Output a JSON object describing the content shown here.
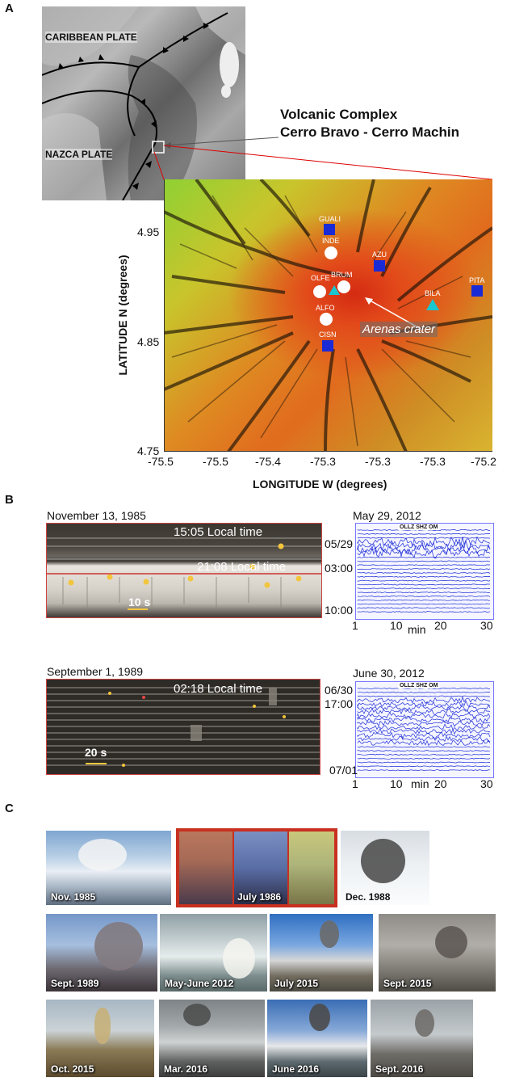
{
  "panel_a": {
    "letter": "A",
    "plate_caribbean": "CARIBBEAN PLATE",
    "plate_nazca": "NAZCA PLATE",
    "complex_title_1": "Volcanic Complex",
    "complex_title_2": "Cerro Bravo - Cerro Machin",
    "ylabel": "LATITUDE N (degrees)",
    "xlabel": "LONGITUDE W (degrees)",
    "yticks": [
      "4.95",
      "4.85",
      "4.75"
    ],
    "xticks": [
      "-75.5",
      "-75.5",
      "-75.4",
      "-75.3",
      "-75.3",
      "-75.3",
      "-75.2"
    ],
    "crater_label": "Arenas crater",
    "stations": {
      "squares": [
        "GUALI",
        "AZU",
        "PITA",
        "CISN"
      ],
      "circles": [
        "INDE",
        "OLFE",
        "BRUM",
        "ALFO"
      ],
      "triangles": [
        "BILA"
      ]
    }
  },
  "panel_b": {
    "letter": "B",
    "rec1_date": "November 13, 1985",
    "rec1_time1": "15:05 Local time",
    "rec1_time2": "21:08 Local time",
    "rec1_scale": "10 s",
    "rec2_date": "September 1, 1989",
    "rec2_time": "02:18 Local time",
    "rec2_scale": "20 s",
    "seis1_date": "May 29, 2012",
    "seis1_header": "OLLZ SHZ OM",
    "seis1_y": [
      "05/29",
      "03:00",
      "10:00"
    ],
    "seis1_x": [
      "1",
      "10",
      "min",
      "20",
      "30"
    ],
    "seis2_date": "June 30, 2012",
    "seis2_header": "OLLZ SHZ OM",
    "seis2_y": [
      "06/30",
      "17:00",
      "07/01"
    ],
    "seis2_x": [
      "1",
      "10",
      "min",
      "20",
      "30"
    ]
  },
  "panel_c": {
    "letter": "C",
    "photos": [
      "Nov. 1985",
      "July 1986",
      "Dec. 1988",
      "Sept. 1989",
      "May-June 2012",
      "July 2015",
      "Sept. 2015",
      "Oct. 2015",
      "Mar. 2016",
      "June 2016",
      "Sept. 2016"
    ]
  }
}
